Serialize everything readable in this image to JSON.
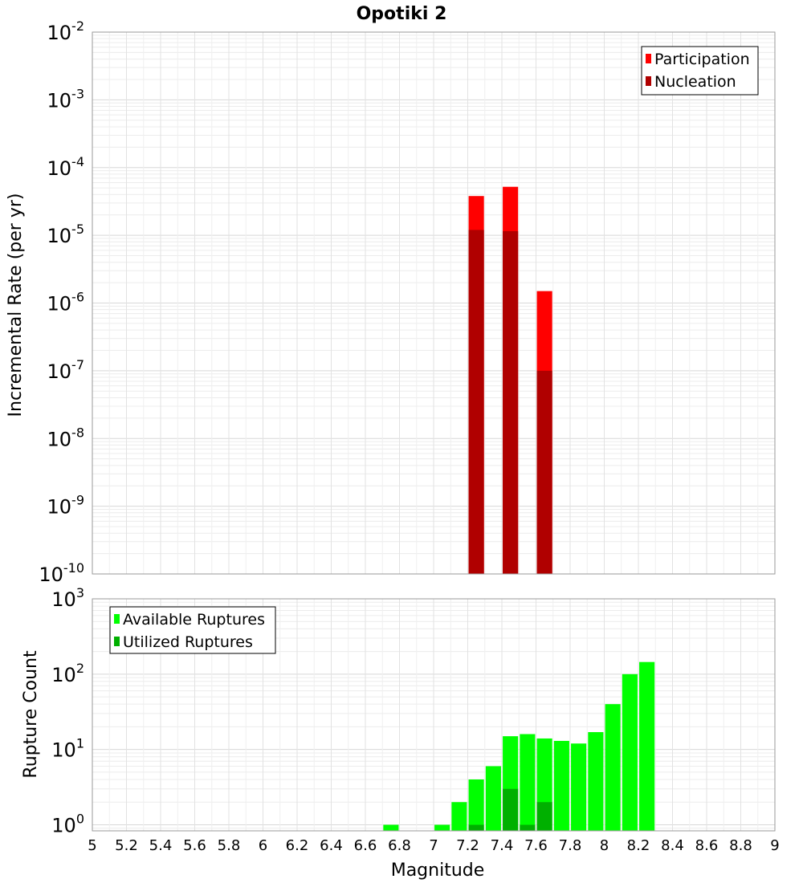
{
  "title": "Opotiki 2",
  "chart_data": [
    {
      "type": "bar",
      "scale": "log",
      "ylabel": "Incremental Rate (per yr)",
      "ylim_exp": [
        -10,
        -2
      ],
      "ytick_base": "10",
      "ytick_exps": [
        "-10",
        "-9",
        "-8",
        "-7",
        "-6",
        "-5",
        "-4",
        "-3",
        "-2"
      ],
      "legend_position": "top-right",
      "series": [
        {
          "name": "Participation",
          "color": "#ff0000",
          "points": [
            {
              "x": 7.25,
              "y": 3.8e-05
            },
            {
              "x": 7.45,
              "y": 5.2e-05
            },
            {
              "x": 7.65,
              "y": 1.5e-06
            }
          ]
        },
        {
          "name": "Nucleation",
          "color": "#b00000",
          "points": [
            {
              "x": 7.25,
              "y": 1.2e-05
            },
            {
              "x": 7.45,
              "y": 1.15e-05
            },
            {
              "x": 7.65,
              "y": 1e-07
            }
          ]
        }
      ]
    },
    {
      "type": "bar",
      "scale": "log",
      "ylabel": "Rupture Count",
      "xlabel": "Magnitude",
      "ylim_exp": [
        -0.08,
        3
      ],
      "ytick_base": "10",
      "ytick_exps": [
        "0",
        "1",
        "2",
        "3"
      ],
      "legend_position": "top-left",
      "series": [
        {
          "name": "Available Ruptures",
          "color": "#00ff00",
          "points": [
            {
              "x": 6.75,
              "y": 1
            },
            {
              "x": 7.05,
              "y": 1
            },
            {
              "x": 7.15,
              "y": 2
            },
            {
              "x": 7.25,
              "y": 4
            },
            {
              "x": 7.35,
              "y": 6
            },
            {
              "x": 7.45,
              "y": 15
            },
            {
              "x": 7.55,
              "y": 16
            },
            {
              "x": 7.65,
              "y": 14
            },
            {
              "x": 7.75,
              "y": 13
            },
            {
              "x": 7.85,
              "y": 12
            },
            {
              "x": 7.95,
              "y": 17
            },
            {
              "x": 8.05,
              "y": 40
            },
            {
              "x": 8.15,
              "y": 100
            },
            {
              "x": 8.25,
              "y": 145
            }
          ]
        },
        {
          "name": "Utilized Ruptures",
          "color": "#00b000",
          "points": [
            {
              "x": 7.25,
              "y": 1
            },
            {
              "x": 7.45,
              "y": 3
            },
            {
              "x": 7.55,
              "y": 1
            },
            {
              "x": 7.65,
              "y": 2
            }
          ]
        }
      ]
    }
  ],
  "x_axis": {
    "xlim": [
      5,
      9
    ],
    "label": "Magnitude",
    "ticks": [
      "5",
      "5.2",
      "5.4",
      "5.6",
      "5.8",
      "6",
      "6.2",
      "6.4",
      "6.6",
      "6.8",
      "7",
      "7.2",
      "7.4",
      "7.6",
      "7.8",
      "8",
      "8.2",
      "8.4",
      "8.6",
      "8.8",
      "9"
    ]
  }
}
